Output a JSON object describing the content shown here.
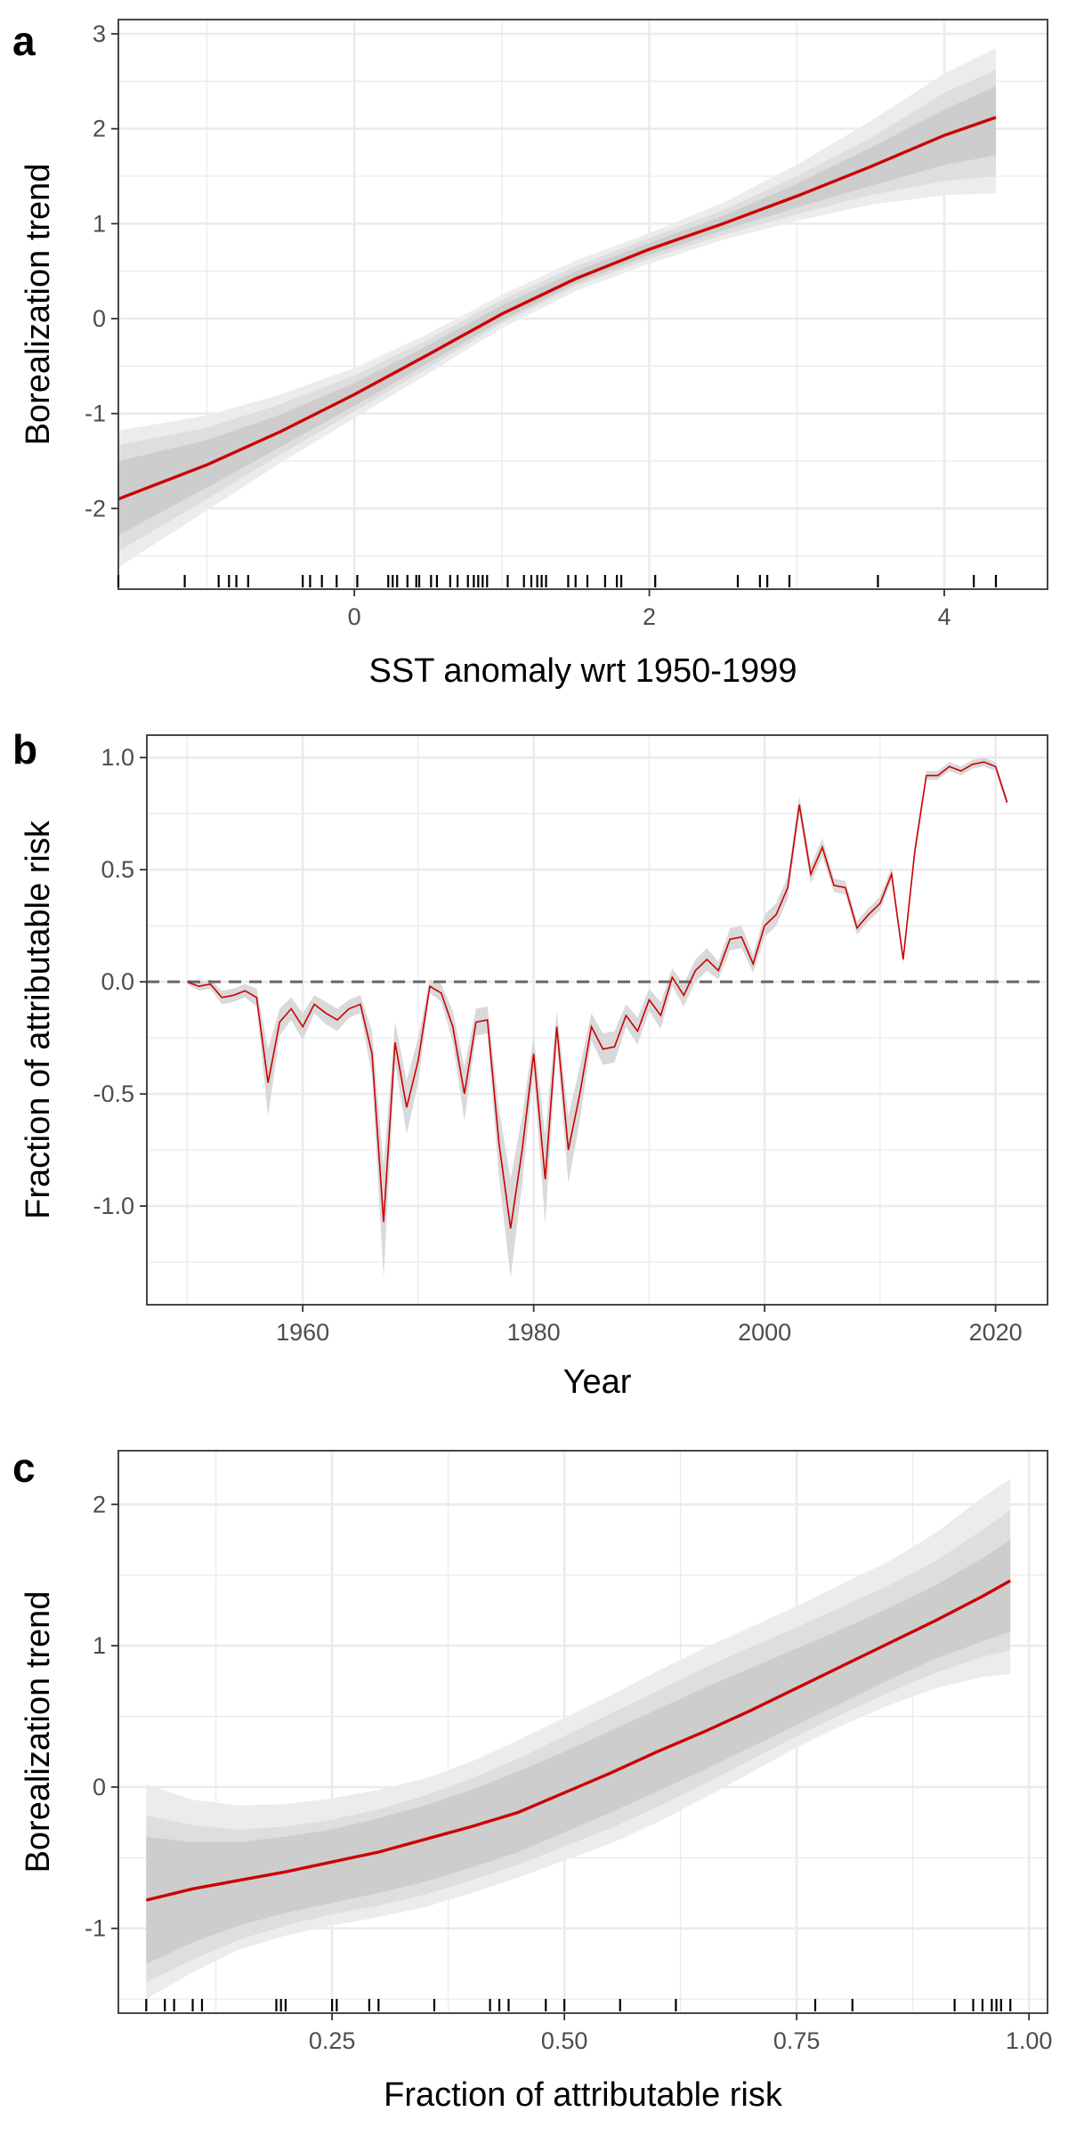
{
  "chart_data": [
    {
      "panel": "a",
      "type": "line",
      "xlabel": "SST anomaly wrt 1950-1999",
      "ylabel": "Borealization trend",
      "xlim": [
        -1.6,
        4.7
      ],
      "ylim": [
        -2.85,
        3.15
      ],
      "xticks": [
        0,
        2,
        4
      ],
      "xtick_labels": [
        "0",
        "2",
        "4"
      ],
      "yticks": [
        -2,
        -1,
        0,
        1,
        2,
        3
      ],
      "ytick_labels": [
        "-2",
        "-1",
        "0",
        "1",
        "2",
        "3"
      ],
      "grid": true,
      "line_color": "#cc0000",
      "band_colors": [
        "#ececec",
        "#dedede",
        "#cdcdcd"
      ],
      "series": [
        {
          "x": [
            -1.6,
            -1.0,
            -0.5,
            0.0,
            0.5,
            1.0,
            1.5,
            2.0,
            2.5,
            3.0,
            3.5,
            4.0,
            4.35
          ],
          "y": [
            -1.9,
            -1.54,
            -1.19,
            -0.8,
            -0.38,
            0.05,
            0.42,
            0.73,
            1.0,
            1.29,
            1.6,
            1.93,
            2.12
          ],
          "band_outer": {
            "lower": [
              -2.62,
              -2.02,
              -1.52,
              -1.05,
              -0.58,
              -0.1,
              0.29,
              0.58,
              0.83,
              1.03,
              1.2,
              1.3,
              1.32
            ],
            "upper": [
              -1.18,
              -1.02,
              -0.8,
              -0.52,
              -0.16,
              0.25,
              0.61,
              0.9,
              1.22,
              1.62,
              2.08,
              2.58,
              2.85
            ]
          },
          "band_mid": {
            "lower": [
              -2.45,
              -1.9,
              -1.43,
              -0.98,
              -0.52,
              -0.05,
              0.34,
              0.63,
              0.88,
              1.1,
              1.3,
              1.45,
              1.5
            ],
            "upper": [
              -1.33,
              -1.15,
              -0.9,
              -0.6,
              -0.22,
              0.2,
              0.55,
              0.85,
              1.14,
              1.5,
              1.9,
              2.38,
              2.62
            ]
          },
          "band_inner": {
            "lower": [
              -2.28,
              -1.78,
              -1.35,
              -0.92,
              -0.47,
              -0.02,
              0.37,
              0.67,
              0.93,
              1.17,
              1.4,
              1.62,
              1.72
            ],
            "upper": [
              -1.5,
              -1.28,
              -1.01,
              -0.68,
              -0.28,
              0.14,
              0.5,
              0.8,
              1.08,
              1.42,
              1.8,
              2.2,
              2.45
            ]
          }
        }
      ],
      "rug_x": [
        -1.6,
        -1.15,
        -0.92,
        -0.85,
        -0.8,
        -0.72,
        -0.35,
        -0.3,
        -0.22,
        -0.12,
        0.02,
        0.23,
        0.26,
        0.29,
        0.36,
        0.42,
        0.44,
        0.52,
        0.56,
        0.65,
        0.7,
        0.77,
        0.81,
        0.84,
        0.87,
        0.9,
        1.04,
        1.15,
        1.2,
        1.24,
        1.27,
        1.3,
        1.45,
        1.5,
        1.58,
        1.7,
        1.78,
        1.81,
        2.04,
        2.6,
        2.75,
        2.8,
        2.95,
        3.55,
        4.2,
        4.35
      ]
    },
    {
      "panel": "b",
      "type": "line",
      "xlabel": "Year",
      "ylabel": "Fraction of attributable risk",
      "xlim": [
        1946.5,
        2024.5
      ],
      "ylim": [
        -1.44,
        1.1
      ],
      "xticks": [
        1960,
        1980,
        2000,
        2020
      ],
      "xtick_labels": [
        "1960",
        "1980",
        "2000",
        "2020"
      ],
      "yticks": [
        -1.0,
        -0.5,
        0.0,
        0.5,
        1.0
      ],
      "ytick_labels": [
        "-1.0",
        "-0.5",
        "0.0",
        "0.5",
        "1.0"
      ],
      "grid": true,
      "line_color": "#cc0000",
      "band_color": "#d9d9d9",
      "reference_line": {
        "y": 0,
        "style": "dashed",
        "color": "#666666"
      },
      "series": [
        {
          "x": [
            1950,
            1951,
            1952,
            1953,
            1954,
            1955,
            1956,
            1957,
            1958,
            1959,
            1960,
            1961,
            1962,
            1963,
            1964,
            1965,
            1966,
            1967,
            1968,
            1969,
            1970,
            1971,
            1972,
            1973,
            1974,
            1975,
            1976,
            1977,
            1978,
            1979,
            1980,
            1981,
            1982,
            1983,
            1984,
            1985,
            1986,
            1987,
            1988,
            1989,
            1990,
            1991,
            1992,
            1993,
            1994,
            1995,
            1996,
            1997,
            1998,
            1999,
            2000,
            2001,
            2002,
            2003,
            2004,
            2005,
            2006,
            2007,
            2008,
            2009,
            2010,
            2011,
            2012,
            2013,
            2014,
            2015,
            2016,
            2017,
            2018,
            2019,
            2020,
            2021
          ],
          "y": [
            0.0,
            -0.02,
            -0.01,
            -0.07,
            -0.06,
            -0.04,
            -0.07,
            -0.45,
            -0.18,
            -0.12,
            -0.2,
            -0.1,
            -0.14,
            -0.17,
            -0.12,
            -0.1,
            -0.32,
            -1.07,
            -0.27,
            -0.56,
            -0.35,
            -0.02,
            -0.05,
            -0.2,
            -0.5,
            -0.18,
            -0.17,
            -0.72,
            -1.1,
            -0.75,
            -0.32,
            -0.88,
            -0.2,
            -0.75,
            -0.5,
            -0.2,
            -0.3,
            -0.29,
            -0.15,
            -0.22,
            -0.08,
            -0.15,
            0.02,
            -0.06,
            0.05,
            0.1,
            0.05,
            0.19,
            0.2,
            0.08,
            0.25,
            0.3,
            0.42,
            0.79,
            0.48,
            0.6,
            0.43,
            0.42,
            0.24,
            0.3,
            0.35,
            0.48,
            0.1,
            0.58,
            0.92,
            0.92,
            0.96,
            0.94,
            0.97,
            0.98,
            0.96,
            0.8
          ],
          "band_halfwidth": [
            0.01,
            0.02,
            0.02,
            0.03,
            0.03,
            0.03,
            0.04,
            0.15,
            0.06,
            0.05,
            0.06,
            0.04,
            0.05,
            0.05,
            0.04,
            0.04,
            0.1,
            0.25,
            0.09,
            0.12,
            0.1,
            0.03,
            0.04,
            0.07,
            0.12,
            0.06,
            0.06,
            0.15,
            0.22,
            0.15,
            0.08,
            0.2,
            0.07,
            0.15,
            0.12,
            0.06,
            0.07,
            0.07,
            0.05,
            0.06,
            0.05,
            0.06,
            0.04,
            0.05,
            0.05,
            0.05,
            0.04,
            0.05,
            0.05,
            0.04,
            0.05,
            0.05,
            0.05,
            0.04,
            0.04,
            0.04,
            0.03,
            0.03,
            0.03,
            0.03,
            0.03,
            0.03,
            0.02,
            0.03,
            0.02,
            0.02,
            0.02,
            0.02,
            0.02,
            0.02,
            0.02,
            0.02
          ]
        }
      ]
    },
    {
      "panel": "c",
      "type": "line",
      "xlabel": "Fraction of attributable risk",
      "ylabel": "Borealization trend",
      "xlim": [
        0.02,
        1.02
      ],
      "ylim": [
        -1.6,
        2.38
      ],
      "xticks": [
        0.25,
        0.5,
        0.75,
        1.0
      ],
      "xtick_labels": [
        "0.25",
        "0.50",
        "0.75",
        "1.00"
      ],
      "yticks": [
        -1,
        0,
        1,
        2
      ],
      "ytick_labels": [
        "-1",
        "0",
        "1",
        "2"
      ],
      "grid": true,
      "line_color": "#cc0000",
      "band_colors": [
        "#ececec",
        "#dedede",
        "#cdcdcd"
      ],
      "series": [
        {
          "x": [
            0.05,
            0.1,
            0.15,
            0.2,
            0.25,
            0.3,
            0.35,
            0.4,
            0.45,
            0.5,
            0.55,
            0.6,
            0.65,
            0.7,
            0.75,
            0.8,
            0.85,
            0.9,
            0.95,
            0.98
          ],
          "y": [
            -0.8,
            -0.72,
            -0.66,
            -0.6,
            -0.53,
            -0.46,
            -0.37,
            -0.28,
            -0.18,
            -0.04,
            0.1,
            0.25,
            0.39,
            0.54,
            0.7,
            0.86,
            1.02,
            1.18,
            1.35,
            1.46
          ],
          "band_outer": {
            "lower": [
              -1.5,
              -1.31,
              -1.15,
              -1.05,
              -0.98,
              -0.92,
              -0.85,
              -0.75,
              -0.64,
              -0.52,
              -0.4,
              -0.25,
              -0.08,
              0.1,
              0.28,
              0.44,
              0.58,
              0.7,
              0.78,
              0.8
            ],
            "upper": [
              0.02,
              -0.09,
              -0.13,
              -0.12,
              -0.08,
              -0.02,
              0.06,
              0.18,
              0.33,
              0.49,
              0.65,
              0.82,
              0.98,
              1.13,
              1.28,
              1.44,
              1.6,
              1.8,
              2.05,
              2.18
            ]
          },
          "band_mid": {
            "lower": [
              -1.38,
              -1.22,
              -1.08,
              -0.98,
              -0.9,
              -0.84,
              -0.76,
              -0.66,
              -0.55,
              -0.42,
              -0.29,
              -0.14,
              0.02,
              0.19,
              0.36,
              0.52,
              0.67,
              0.81,
              0.92,
              0.97
            ],
            "upper": [
              -0.2,
              -0.27,
              -0.3,
              -0.28,
              -0.23,
              -0.16,
              -0.06,
              0.06,
              0.2,
              0.36,
              0.52,
              0.68,
              0.84,
              0.99,
              1.13,
              1.28,
              1.43,
              1.6,
              1.82,
              1.96
            ]
          },
          "band_inner": {
            "lower": [
              -1.25,
              -1.1,
              -0.98,
              -0.89,
              -0.82,
              -0.75,
              -0.67,
              -0.57,
              -0.46,
              -0.32,
              -0.18,
              -0.03,
              0.12,
              0.28,
              0.44,
              0.6,
              0.76,
              0.91,
              1.03,
              1.1
            ],
            "upper": [
              -0.35,
              -0.39,
              -0.39,
              -0.35,
              -0.3,
              -0.22,
              -0.13,
              -0.02,
              0.11,
              0.25,
              0.4,
              0.55,
              0.7,
              0.84,
              0.98,
              1.12,
              1.27,
              1.43,
              1.62,
              1.75
            ]
          }
        }
      ],
      "rug_x": [
        0.05,
        0.07,
        0.08,
        0.1,
        0.11,
        0.19,
        0.195,
        0.2,
        0.25,
        0.255,
        0.29,
        0.3,
        0.36,
        0.42,
        0.43,
        0.44,
        0.48,
        0.5,
        0.56,
        0.62,
        0.77,
        0.81,
        0.92,
        0.94,
        0.95,
        0.96,
        0.965,
        0.97,
        0.98
      ]
    }
  ]
}
